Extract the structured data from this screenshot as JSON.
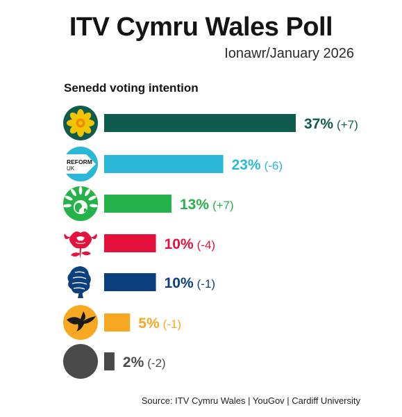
{
  "title": "ITV Cymru Wales Poll",
  "subtitle": "Ionawr/January 2026",
  "source": "Source: ITV Cymru Wales | YouGov | Cardiff University",
  "chart_data": {
    "type": "bar",
    "orientation": "horizontal",
    "title": "Senedd voting intention",
    "xlim": [
      0,
      37
    ],
    "grid": false,
    "legend": "none",
    "categories": [
      "Plaid Cymru",
      "Reform UK",
      "Green",
      "Labour",
      "Conservative",
      "Liberal Democrats",
      "Other"
    ],
    "values": [
      37,
      23,
      13,
      10,
      10,
      5,
      2
    ],
    "value_labels": [
      "37%",
      "23%",
      "13%",
      "10%",
      "10%",
      "5%",
      "2%"
    ],
    "change_labels": [
      "(+7)",
      "(-6)",
      "(+7)",
      "(-4)",
      "(-1)",
      "(-1)",
      "(-2)"
    ],
    "colors": [
      "#0f5c4e",
      "#2bb8d8",
      "#25b24a",
      "#e4113a",
      "#0b3f7e",
      "#f7a823",
      "#4a4a4a"
    ],
    "logo_text": {
      "reform_line1": "REFORM",
      "reform_line2": "UK"
    },
    "icons": [
      "daffodil-logo-icon",
      "reform-uk-logo-icon",
      "green-party-logo-icon",
      "labour-rose-logo-icon",
      "conservative-tree-logo-icon",
      "lib-dem-bird-logo-icon",
      "other-grey-circle-icon"
    ]
  }
}
